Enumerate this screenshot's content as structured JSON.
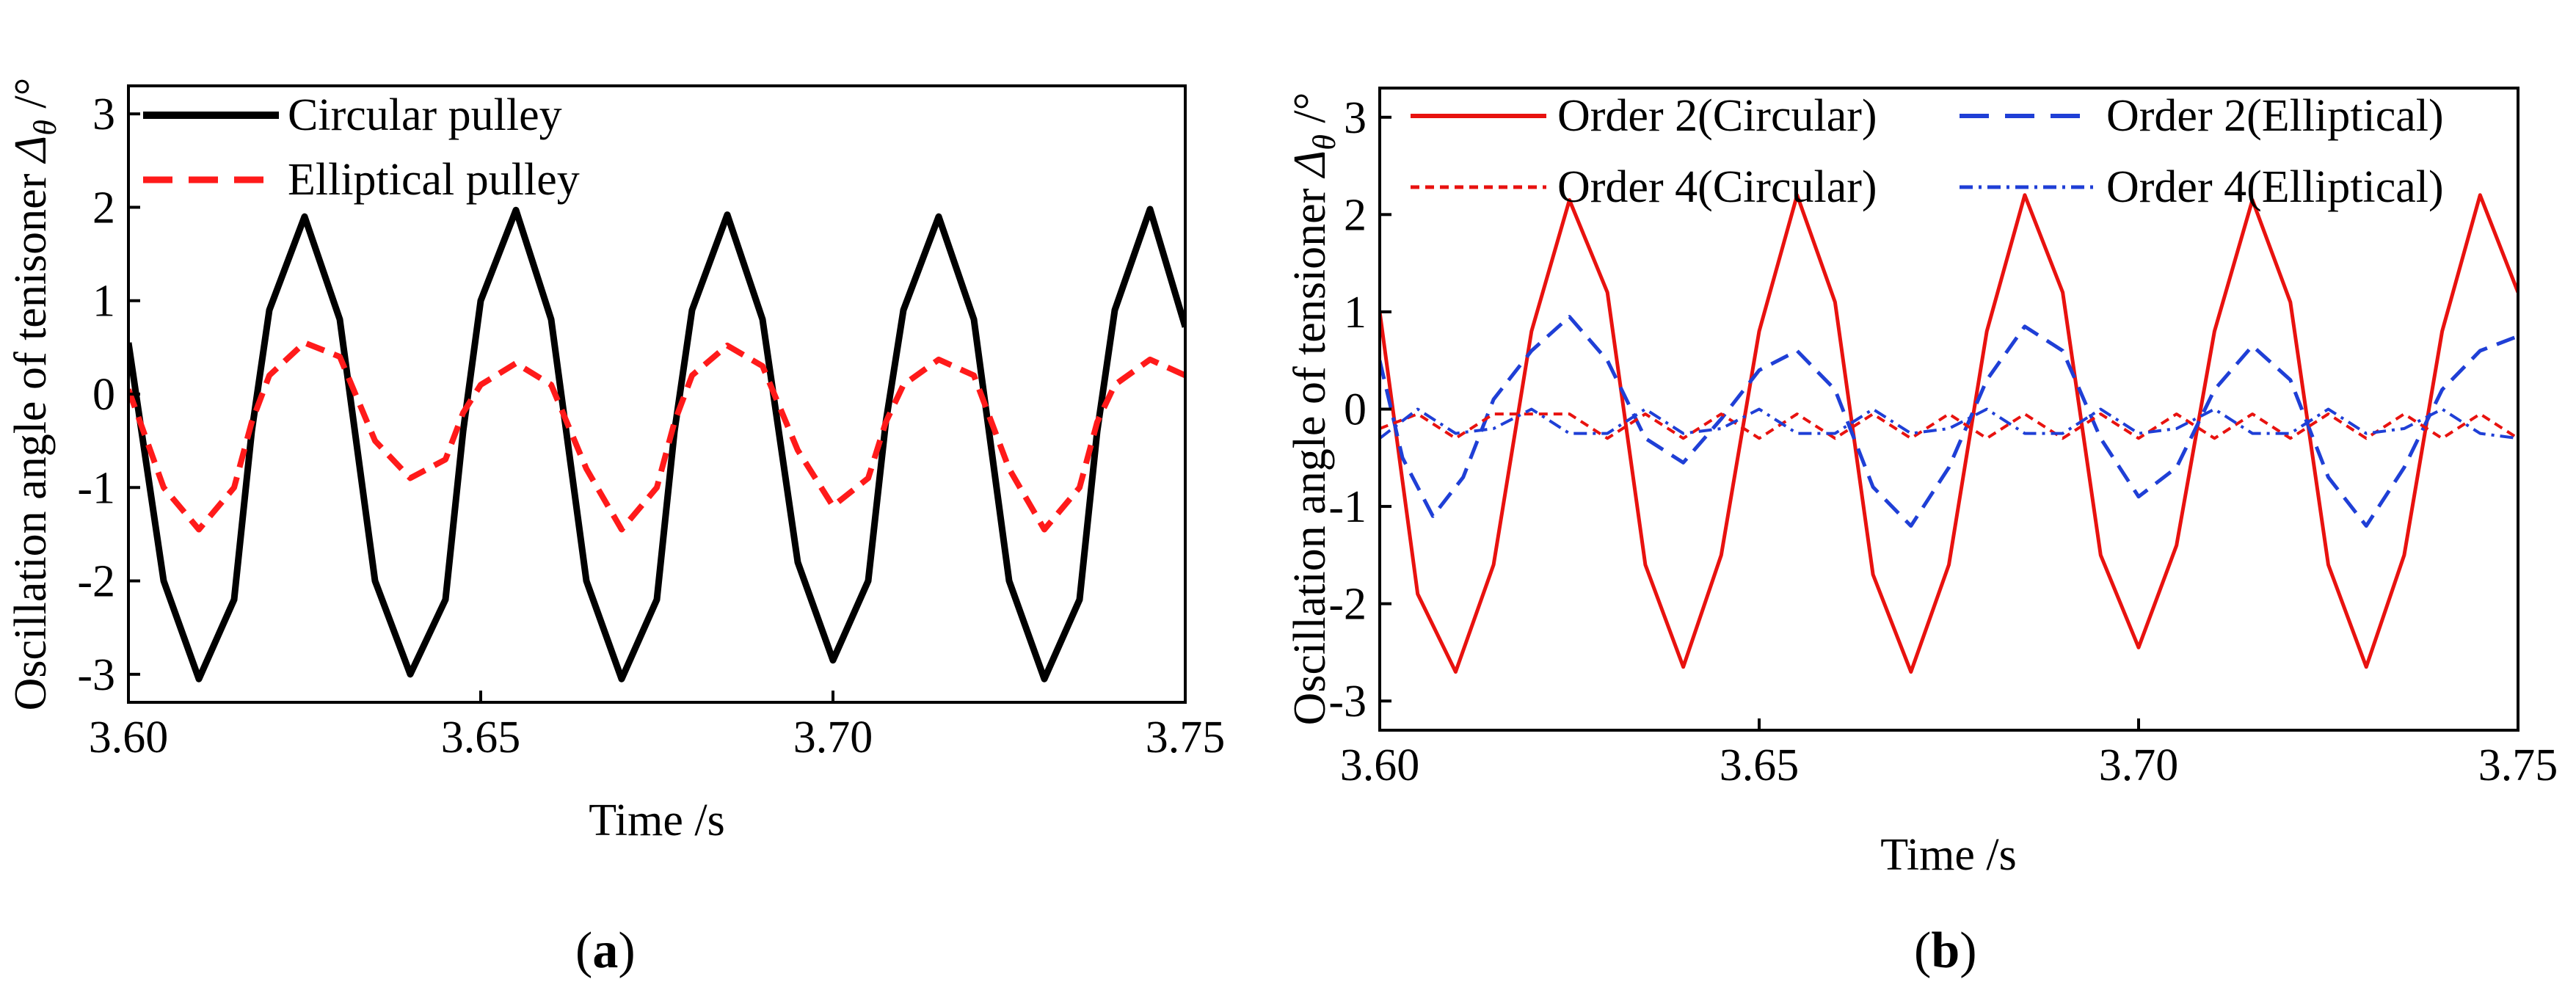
{
  "chart_data": [
    {
      "id": "a",
      "type": "line",
      "panel_label": {
        "open": "(",
        "letter": "a",
        "close": ")"
      },
      "xlabel": "Time /s",
      "ylabel": "Oscillation angle of tenisoner Δθ /°",
      "ylabel_parts": {
        "main": "Oscillation angle of tenisoner ",
        "symbol": "Δ",
        "sub": "θ",
        "unit": " /°"
      },
      "xlim": [
        3.6,
        3.75
      ],
      "ylim": [
        -3.3,
        3.3
      ],
      "xticks": [
        3.6,
        3.65,
        3.7,
        3.75
      ],
      "xtick_labels": [
        "3.60",
        "3.65",
        "3.70",
        "3.75"
      ],
      "yticks": [
        -3,
        -2,
        -1,
        0,
        1,
        2,
        3
      ],
      "ytick_labels": [
        "-3",
        "-2",
        "-1",
        "0",
        "1",
        "2",
        "3"
      ],
      "legend_position": "top-left",
      "series": [
        {
          "name": "Circular pulley",
          "color": "#000000",
          "style": "solid",
          "points": [
            [
              3.6,
              0.55
            ],
            [
              3.605,
              -2.0
            ],
            [
              3.61,
              -3.05
            ],
            [
              3.615,
              -2.2
            ],
            [
              3.6175,
              -0.4
            ],
            [
              3.62,
              0.9
            ],
            [
              3.625,
              1.9
            ],
            [
              3.63,
              0.8
            ],
            [
              3.635,
              -2.0
            ],
            [
              3.64,
              -3.0
            ],
            [
              3.645,
              -2.2
            ],
            [
              3.6475,
              -0.4
            ],
            [
              3.65,
              1.0
            ],
            [
              3.655,
              1.97
            ],
            [
              3.66,
              0.8
            ],
            [
              3.665,
              -2.0
            ],
            [
              3.67,
              -3.05
            ],
            [
              3.675,
              -2.2
            ],
            [
              3.6775,
              -0.4
            ],
            [
              3.68,
              0.9
            ],
            [
              3.685,
              1.92
            ],
            [
              3.69,
              0.8
            ],
            [
              3.695,
              -1.8
            ],
            [
              3.7,
              -2.85
            ],
            [
              3.705,
              -2.0
            ],
            [
              3.7075,
              -0.3
            ],
            [
              3.71,
              0.9
            ],
            [
              3.715,
              1.9
            ],
            [
              3.72,
              0.8
            ],
            [
              3.725,
              -2.0
            ],
            [
              3.73,
              -3.05
            ],
            [
              3.735,
              -2.2
            ],
            [
              3.7375,
              -0.4
            ],
            [
              3.74,
              0.9
            ],
            [
              3.745,
              1.98
            ],
            [
              3.75,
              0.72
            ]
          ]
        },
        {
          "name": "Elliptical pulley",
          "color": "#ff1a1a",
          "style": "dashed",
          "points": [
            [
              3.6,
              0.05
            ],
            [
              3.605,
              -1.0
            ],
            [
              3.61,
              -1.45
            ],
            [
              3.615,
              -1.0
            ],
            [
              3.6175,
              -0.3
            ],
            [
              3.62,
              0.2
            ],
            [
              3.625,
              0.55
            ],
            [
              3.63,
              0.4
            ],
            [
              3.635,
              -0.5
            ],
            [
              3.64,
              -0.9
            ],
            [
              3.645,
              -0.7
            ],
            [
              3.6475,
              -0.2
            ],
            [
              3.65,
              0.1
            ],
            [
              3.655,
              0.33
            ],
            [
              3.66,
              0.1
            ],
            [
              3.665,
              -0.8
            ],
            [
              3.67,
              -1.45
            ],
            [
              3.675,
              -1.0
            ],
            [
              3.6775,
              -0.3
            ],
            [
              3.68,
              0.2
            ],
            [
              3.685,
              0.52
            ],
            [
              3.69,
              0.3
            ],
            [
              3.695,
              -0.6
            ],
            [
              3.7,
              -1.2
            ],
            [
              3.705,
              -0.9
            ],
            [
              3.7075,
              -0.3
            ],
            [
              3.71,
              0.1
            ],
            [
              3.715,
              0.37
            ],
            [
              3.72,
              0.2
            ],
            [
              3.725,
              -0.8
            ],
            [
              3.73,
              -1.45
            ],
            [
              3.735,
              -1.0
            ],
            [
              3.7375,
              -0.3
            ],
            [
              3.74,
              0.1
            ],
            [
              3.745,
              0.37
            ],
            [
              3.75,
              0.2
            ]
          ]
        }
      ]
    },
    {
      "id": "b",
      "type": "line",
      "panel_label": {
        "open": "(",
        "letter": "b",
        "close": ")"
      },
      "xlabel": "Time /s",
      "ylabel": "Oscillation angle of tensioner Δθ /°",
      "ylabel_parts": {
        "main": "Oscillation angle of tensioner ",
        "symbol": "Δ",
        "sub": "θ",
        "unit": " /°"
      },
      "xlim": [
        3.6,
        3.75
      ],
      "ylim": [
        -3.3,
        3.3
      ],
      "xticks": [
        3.6,
        3.65,
        3.7,
        3.75
      ],
      "xtick_labels": [
        "3.60",
        "3.65",
        "3.70",
        "3.75"
      ],
      "yticks": [
        -3,
        -2,
        -1,
        0,
        1,
        2,
        3
      ],
      "ytick_labels": [
        "-3",
        "-2",
        "-1",
        "0",
        "1",
        "2",
        "3"
      ],
      "legend_position": "top",
      "series": [
        {
          "name": "Order 2(Circular)",
          "color": "#e8120f",
          "style": "solid",
          "points": [
            [
              3.6,
              1.0
            ],
            [
              3.605,
              -1.9
            ],
            [
              3.61,
              -2.7
            ],
            [
              3.615,
              -1.6
            ],
            [
              3.62,
              0.8
            ],
            [
              3.625,
              2.15
            ],
            [
              3.63,
              1.2
            ],
            [
              3.635,
              -1.6
            ],
            [
              3.64,
              -2.65
            ],
            [
              3.645,
              -1.5
            ],
            [
              3.65,
              0.8
            ],
            [
              3.655,
              2.2
            ],
            [
              3.66,
              1.1
            ],
            [
              3.665,
              -1.7
            ],
            [
              3.67,
              -2.7
            ],
            [
              3.675,
              -1.6
            ],
            [
              3.68,
              0.8
            ],
            [
              3.685,
              2.2
            ],
            [
              3.69,
              1.2
            ],
            [
              3.695,
              -1.5
            ],
            [
              3.7,
              -2.45
            ],
            [
              3.705,
              -1.4
            ],
            [
              3.71,
              0.8
            ],
            [
              3.715,
              2.15
            ],
            [
              3.72,
              1.1
            ],
            [
              3.725,
              -1.6
            ],
            [
              3.73,
              -2.65
            ],
            [
              3.735,
              -1.5
            ],
            [
              3.74,
              0.8
            ],
            [
              3.745,
              2.2
            ],
            [
              3.75,
              1.2
            ]
          ]
        },
        {
          "name": "Order 2(Elliptical)",
          "color": "#1f3fd6",
          "style": "dashed",
          "points": [
            [
              3.6,
              0.5
            ],
            [
              3.603,
              -0.5
            ],
            [
              3.607,
              -1.1
            ],
            [
              3.611,
              -0.7
            ],
            [
              3.615,
              0.1
            ],
            [
              3.62,
              0.6
            ],
            [
              3.625,
              0.95
            ],
            [
              3.63,
              0.5
            ],
            [
              3.635,
              -0.3
            ],
            [
              3.64,
              -0.55
            ],
            [
              3.645,
              -0.1
            ],
            [
              3.65,
              0.4
            ],
            [
              3.655,
              0.6
            ],
            [
              3.66,
              0.2
            ],
            [
              3.665,
              -0.8
            ],
            [
              3.67,
              -1.2
            ],
            [
              3.675,
              -0.6
            ],
            [
              3.68,
              0.3
            ],
            [
              3.685,
              0.85
            ],
            [
              3.69,
              0.6
            ],
            [
              3.695,
              -0.3
            ],
            [
              3.7,
              -0.9
            ],
            [
              3.705,
              -0.6
            ],
            [
              3.71,
              0.2
            ],
            [
              3.715,
              0.65
            ],
            [
              3.72,
              0.3
            ],
            [
              3.725,
              -0.7
            ],
            [
              3.73,
              -1.2
            ],
            [
              3.735,
              -0.6
            ],
            [
              3.74,
              0.2
            ],
            [
              3.745,
              0.6
            ],
            [
              3.75,
              0.75
            ]
          ]
        },
        {
          "name": "Order 4(Circular)",
          "color": "#e8120f",
          "style": "short-dash",
          "points": [
            [
              3.6,
              -0.2
            ],
            [
              3.605,
              -0.05
            ],
            [
              3.61,
              -0.3
            ],
            [
              3.615,
              -0.05
            ],
            [
              3.62,
              -0.05
            ],
            [
              3.625,
              -0.05
            ],
            [
              3.63,
              -0.3
            ],
            [
              3.635,
              -0.05
            ],
            [
              3.64,
              -0.3
            ],
            [
              3.645,
              -0.05
            ],
            [
              3.65,
              -0.3
            ],
            [
              3.655,
              -0.05
            ],
            [
              3.66,
              -0.3
            ],
            [
              3.665,
              -0.05
            ],
            [
              3.67,
              -0.3
            ],
            [
              3.675,
              -0.05
            ],
            [
              3.68,
              -0.3
            ],
            [
              3.685,
              -0.05
            ],
            [
              3.69,
              -0.3
            ],
            [
              3.695,
              -0.05
            ],
            [
              3.7,
              -0.3
            ],
            [
              3.705,
              -0.05
            ],
            [
              3.71,
              -0.3
            ],
            [
              3.715,
              -0.05
            ],
            [
              3.72,
              -0.3
            ],
            [
              3.725,
              -0.05
            ],
            [
              3.73,
              -0.3
            ],
            [
              3.735,
              -0.05
            ],
            [
              3.74,
              -0.3
            ],
            [
              3.745,
              -0.05
            ],
            [
              3.75,
              -0.3
            ]
          ]
        },
        {
          "name": "Order 4(Elliptical)",
          "color": "#1f3fd6",
          "style": "dash-dot",
          "points": [
            [
              3.6,
              -0.3
            ],
            [
              3.605,
              0.0
            ],
            [
              3.61,
              -0.25
            ],
            [
              3.615,
              -0.2
            ],
            [
              3.62,
              0.0
            ],
            [
              3.625,
              -0.25
            ],
            [
              3.63,
              -0.25
            ],
            [
              3.635,
              0.0
            ],
            [
              3.64,
              -0.25
            ],
            [
              3.645,
              -0.2
            ],
            [
              3.65,
              0.0
            ],
            [
              3.655,
              -0.25
            ],
            [
              3.66,
              -0.25
            ],
            [
              3.665,
              0.0
            ],
            [
              3.67,
              -0.25
            ],
            [
              3.675,
              -0.2
            ],
            [
              3.68,
              0.0
            ],
            [
              3.685,
              -0.25
            ],
            [
              3.69,
              -0.25
            ],
            [
              3.695,
              0.0
            ],
            [
              3.7,
              -0.25
            ],
            [
              3.705,
              -0.2
            ],
            [
              3.71,
              0.0
            ],
            [
              3.715,
              -0.25
            ],
            [
              3.72,
              -0.25
            ],
            [
              3.725,
              0.0
            ],
            [
              3.73,
              -0.25
            ],
            [
              3.735,
              -0.2
            ],
            [
              3.74,
              0.0
            ],
            [
              3.745,
              -0.25
            ],
            [
              3.75,
              -0.3
            ]
          ]
        }
      ]
    }
  ]
}
